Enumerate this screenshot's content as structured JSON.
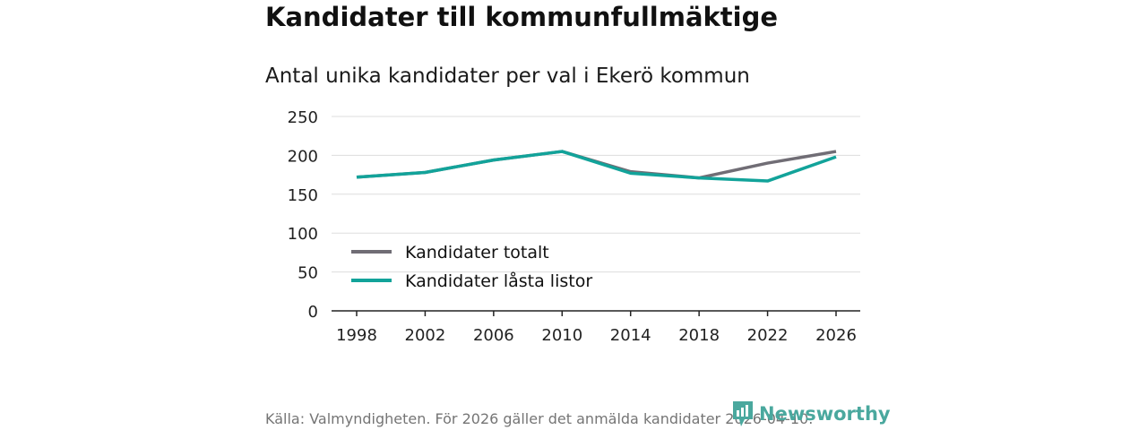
{
  "title": "Kandidater till kommunfullmäktige",
  "subtitle": "Antal unika kandidater per val i Ekerö kommun",
  "source": "Källa: Valmyndigheten. För 2026 gäller det anmälda kandidater 2026-04-10.",
  "brand": {
    "name": "Newsworthy",
    "color": "#4aa89e",
    "icon": "newsworthy-logo-icon"
  },
  "chart_data": {
    "type": "line",
    "title": "Antal unika kandidater per val i Ekerö kommun",
    "xlabel": "",
    "ylabel": "",
    "x": [
      1998,
      2002,
      2006,
      2010,
      2014,
      2018,
      2022,
      2026
    ],
    "ylim": [
      0,
      250
    ],
    "yticks": [
      0,
      50,
      100,
      150,
      200,
      250
    ],
    "grid": true,
    "legend_position": "lower-left",
    "series": [
      {
        "name": "Kandidater totalt",
        "color": "#706d75",
        "values": [
          172,
          178,
          194,
          205,
          179,
          171,
          190,
          205
        ]
      },
      {
        "name": "Kandidater låsta listor",
        "color": "#12a39a",
        "values": [
          172,
          178,
          194,
          205,
          177,
          171,
          167,
          198
        ]
      }
    ]
  }
}
